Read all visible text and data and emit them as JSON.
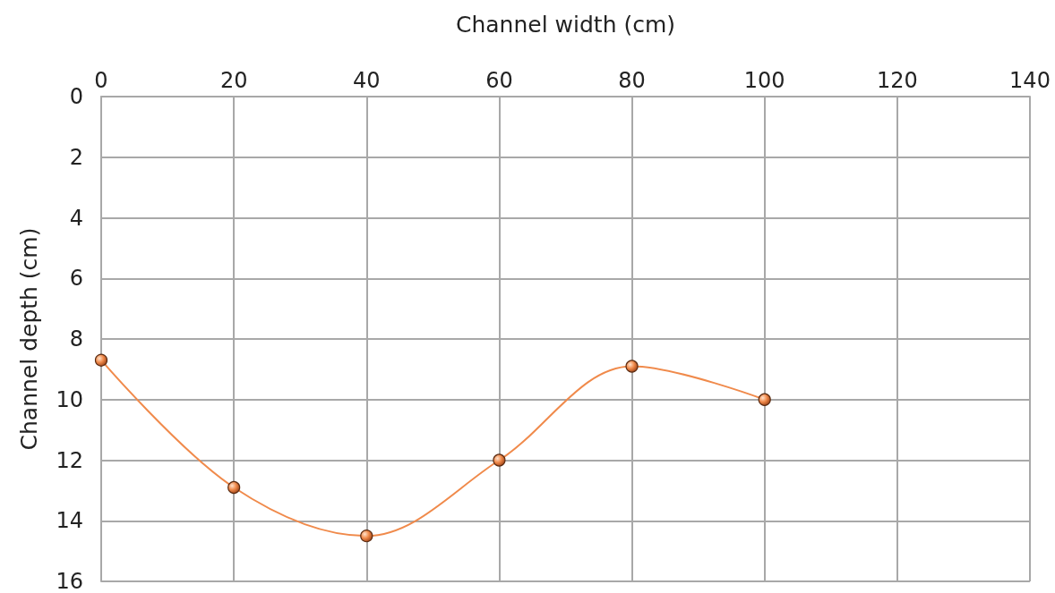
{
  "chart_data": {
    "type": "line",
    "xlabel": "Channel width (cm)",
    "ylabel": "Channel depth (cm)",
    "x": [
      0,
      20,
      40,
      60,
      80,
      100
    ],
    "series": [
      {
        "color": "#f08a4b",
        "values": [
          8.7,
          12.9,
          14.5,
          12,
          8.9,
          10
        ]
      }
    ],
    "xlim": [
      0,
      140
    ],
    "xticks": [
      0,
      20,
      40,
      60,
      80,
      100,
      120,
      140
    ],
    "ylim": [
      16,
      0
    ],
    "yticks": [
      0,
      2,
      4,
      6,
      8,
      10,
      12,
      14,
      16
    ],
    "grid": true,
    "marker": "circle"
  }
}
